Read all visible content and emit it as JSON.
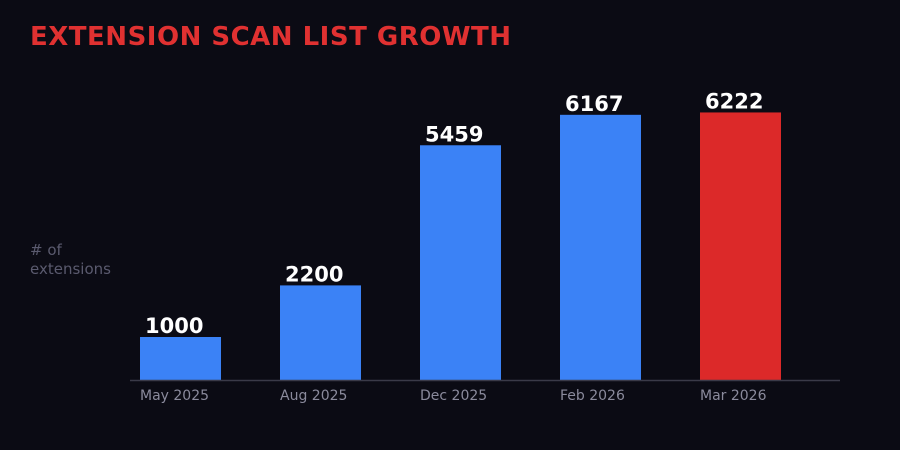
{
  "title": "EXTENSION SCAN LIST GROWTH",
  "ylabel_lines": [
    "# of",
    "extensions"
  ],
  "colors": {
    "background": "#0b0b14",
    "title": "#e03131",
    "bar_default": "#3b82f6",
    "bar_highlight": "#dc2929",
    "value_label": "#ffffff",
    "tick_label": "#8a8a9c",
    "ylabel": "#5a5a6e",
    "axis_line": "#3a3a48"
  },
  "chart_data": {
    "type": "bar",
    "title": "EXTENSION SCAN LIST GROWTH",
    "xlabel": "",
    "ylabel": "# of extensions",
    "categories": [
      "May 2025",
      "Aug 2025",
      "Dec 2025",
      "Feb 2026",
      "Mar 2026"
    ],
    "values": [
      1000,
      2200,
      5459,
      6167,
      6222
    ],
    "highlight_category": "Mar 2026",
    "ylim": [
      0,
      7000
    ],
    "grid": false,
    "legend": "none"
  }
}
